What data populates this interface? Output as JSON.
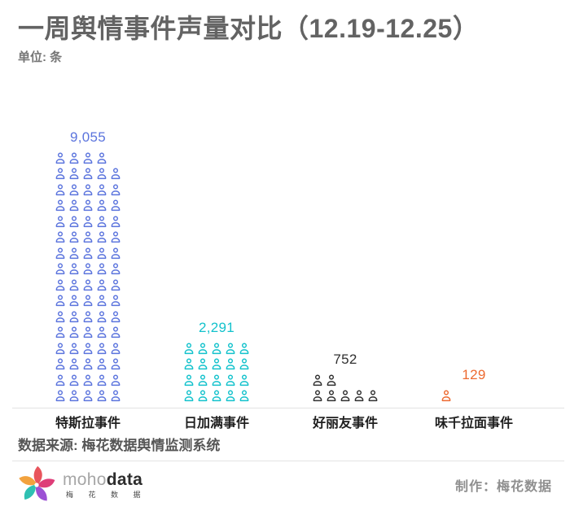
{
  "header": {
    "title": "一周舆情事件声量对比（12.19-12.25）",
    "unit_label": "单位: 条"
  },
  "chart_data": {
    "type": "bar",
    "subtype": "pictogram",
    "title": "一周舆情事件声量对比（12.19-12.25）",
    "unit": "条",
    "categories": [
      "特斯拉事件",
      "日加满事件",
      "好丽友事件",
      "味千拉面事件"
    ],
    "values": [
      9055,
      2291,
      752,
      129
    ],
    "value_labels": [
      "9,055",
      "2,291",
      "752",
      "129"
    ],
    "icon_counts": [
      79,
      20,
      7,
      1
    ],
    "icons_per_row": 5,
    "value_per_icon": 115,
    "colors": [
      "#5b74dd",
      "#13c2cc",
      "#303030",
      "#ed6a30"
    ],
    "icon_name": "person-icon",
    "legend_position": "none",
    "grid": false
  },
  "source": {
    "text": "数据来源: 梅花数据舆情监测系统"
  },
  "footer": {
    "logo": {
      "icon_name": "pinwheel-logo-icon",
      "brand_light": "moho",
      "brand_bold": "data",
      "brand_cn": "梅 花 数 据",
      "petal_colors": [
        "#E8545C",
        "#DE3D78",
        "#9C51D4",
        "#2FC0B2",
        "#F2A23E"
      ],
      "petal_angles": [
        304,
        16,
        88,
        160,
        232
      ]
    },
    "credit": "制作：梅花数据"
  }
}
